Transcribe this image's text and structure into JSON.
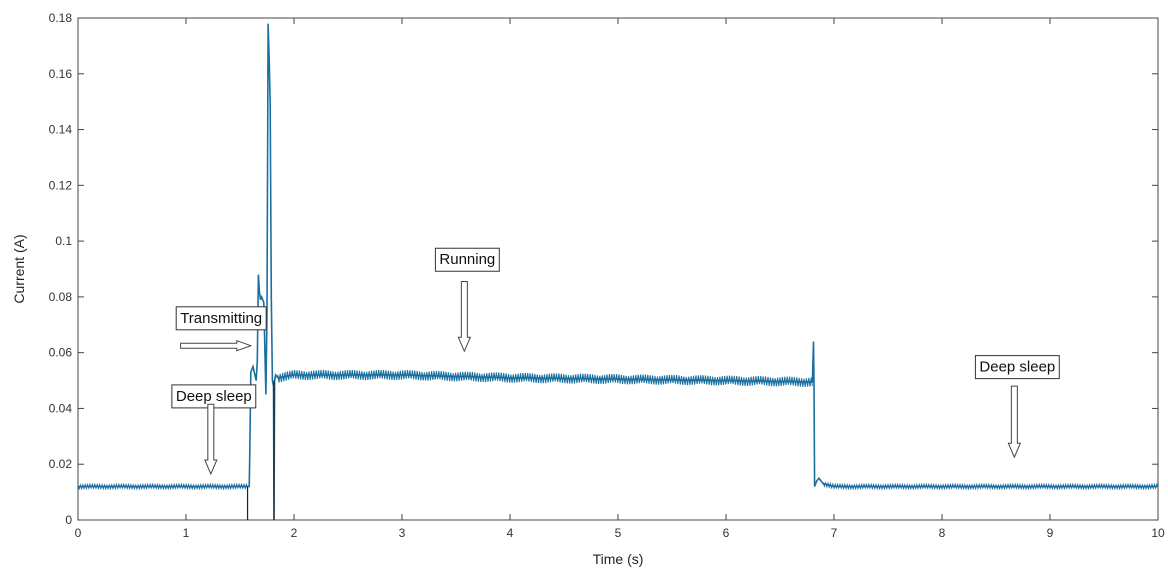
{
  "chart_data": {
    "type": "line",
    "title": "",
    "xlabel": "Time (s)",
    "ylabel": "Current (A)",
    "xlim": [
      0,
      10
    ],
    "ylim": [
      0,
      0.18
    ],
    "xticks": [
      "0",
      "1",
      "2",
      "3",
      "4",
      "5",
      "6",
      "7",
      "8",
      "9",
      "10"
    ],
    "yticks": [
      "0",
      "0.02",
      "0.04",
      "0.06",
      "0.08",
      "0.1",
      "0.12",
      "0.14",
      "0.16",
      "0.18"
    ],
    "grid": false,
    "line_color": "#1a6fa0",
    "series": [
      {
        "x": [
          0,
          1.57,
          1.585,
          1.59,
          1.6,
          1.62,
          1.65,
          1.66,
          1.67,
          1.68,
          1.69,
          1.7,
          1.72,
          1.74,
          1.75,
          1.76,
          1.77,
          1.78,
          1.79,
          1.8,
          1.81,
          1.815,
          1.82,
          1.83,
          1.85,
          2,
          3,
          4,
          5,
          6,
          6.8,
          6.81,
          6.815,
          6.82,
          6.84,
          6.86,
          6.9,
          7,
          8,
          9,
          10
        ],
        "y": [
          0.012,
          0.012,
          0.012,
          0.022,
          0.053,
          0.055,
          0.05,
          0.057,
          0.088,
          0.082,
          0.079,
          0.08,
          0.078,
          0.045,
          0.075,
          0.178,
          0.165,
          0.149,
          0.08,
          0.05,
          0.048,
          0.0,
          0.05,
          0.052,
          0.051,
          0.052,
          0.052,
          0.051,
          0.0505,
          0.05,
          0.0495,
          0.064,
          0.049,
          0.012,
          0.014,
          0.015,
          0.013,
          0.012,
          0.012,
          0.012,
          0.012
        ],
        "band": [
          {
            "x0": 0,
            "x1": 1.57,
            "amp": 0.0008
          },
          {
            "x0": 1.85,
            "x1": 6.8,
            "amp": 0.0018
          },
          {
            "x0": 6.9,
            "x1": 10,
            "amp": 0.0008
          }
        ]
      }
    ],
    "annotations": [
      {
        "text": "Deep sleep",
        "x": 0.86,
        "y": 0.0445,
        "arrow": "down",
        "arrow_from": 0.0415,
        "arrow_to": 0.0165
      },
      {
        "text": "Transmitting",
        "x": 0.9,
        "y": 0.0725,
        "arrow": "right",
        "arrow_x0": 0.95,
        "arrow_x1": 1.6,
        "arrow_y": 0.0625
      },
      {
        "text": "Running",
        "x": 3.3,
        "y": 0.0935,
        "arrow": "down",
        "arrow_from": 0.0855,
        "arrow_to": 0.0605
      },
      {
        "text": "Deep sleep",
        "x": 8.3,
        "y": 0.055,
        "arrow": "down",
        "arrow_from": 0.048,
        "arrow_to": 0.0225
      }
    ]
  }
}
